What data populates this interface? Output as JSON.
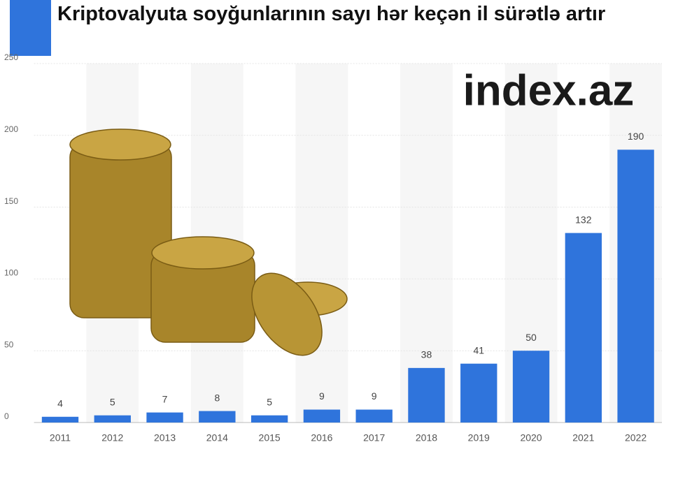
{
  "chart_data": {
    "type": "bar",
    "title": "Kriptovalyuta soyğunlarının sayı hər keçən il sürətlə artır",
    "logo": "index.az",
    "categories": [
      "2011",
      "2012",
      "2013",
      "2014",
      "2015",
      "2016",
      "2017",
      "2018",
      "2019",
      "2020",
      "2021",
      "2022"
    ],
    "values": [
      4,
      5,
      7,
      8,
      5,
      9,
      9,
      38,
      41,
      50,
      132,
      190
    ],
    "color": "#2f74dc",
    "ylim": [
      0,
      250
    ],
    "yticks": [
      0,
      50,
      100,
      150,
      200,
      250
    ],
    "grid": true
  }
}
